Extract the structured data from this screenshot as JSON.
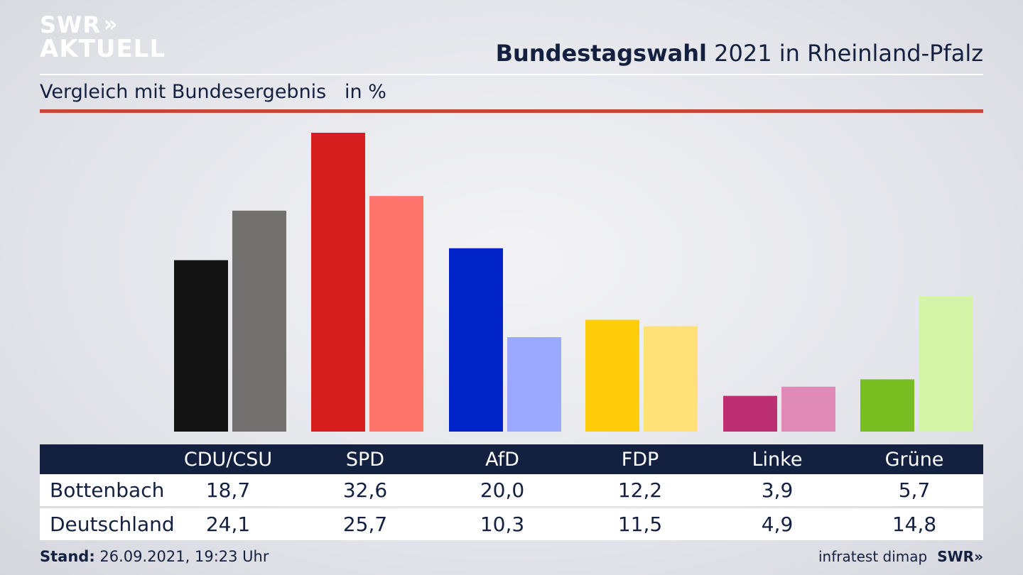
{
  "logo": {
    "line1": "SWR",
    "arrows": "»",
    "line2": "AKTUELL"
  },
  "header": {
    "title_bold": "Bundestagswahl",
    "title_rest": " 2021 in Rheinland-Pfalz",
    "subtitle": "Vergleich mit Bundesergebnis   in %"
  },
  "chart_data": {
    "type": "bar",
    "categories": [
      "CDU/CSU",
      "SPD",
      "AfD",
      "FDP",
      "Linke",
      "Grüne"
    ],
    "series": [
      {
        "name": "Bottenbach",
        "values": [
          18.7,
          32.6,
          20.0,
          12.2,
          3.9,
          5.7
        ],
        "colors": [
          "#141414",
          "#d61e1e",
          "#0023c8",
          "#ffcd0a",
          "#bc2f72",
          "#78be20"
        ]
      },
      {
        "name": "Deutschland",
        "values": [
          24.1,
          25.7,
          10.3,
          11.5,
          4.9,
          14.8
        ],
        "colors": [
          "#737170",
          "#ff756c",
          "#9aa9ff",
          "#ffe177",
          "#e08ab8",
          "#d4f5a7"
        ]
      }
    ],
    "ylim": [
      0,
      34
    ],
    "grid": false,
    "legend": "table-below"
  },
  "table": {
    "header": [
      "CDU/CSU",
      "SPD",
      "AfD",
      "FDP",
      "Linke",
      "Grüne"
    ],
    "rows": [
      {
        "label": "Bottenbach",
        "values": [
          "18,7",
          "32,6",
          "20,0",
          "12,2",
          "3,9",
          "5,7"
        ]
      },
      {
        "label": "Deutschland",
        "values": [
          "24,1",
          "25,7",
          "10,3",
          "11,5",
          "4,9",
          "14,8"
        ]
      }
    ]
  },
  "footer": {
    "stand_label": "Stand:",
    "stand_value": " 26.09.2021, 19:23 Uhr",
    "source": "infratest dimap",
    "brand": "SWR»"
  }
}
